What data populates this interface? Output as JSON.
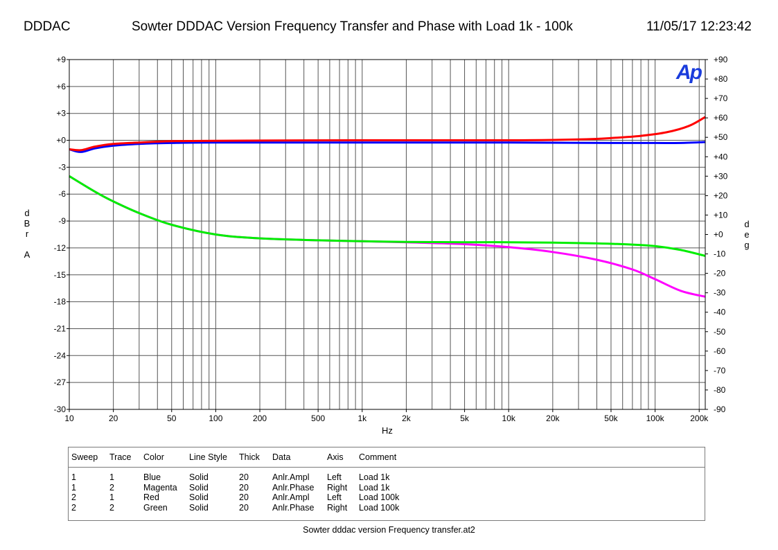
{
  "header": {
    "left": "DDDAC",
    "title": "Sowter DDDAC Version Frequency Transfer and Phase with Load 1k - 100k",
    "datetime": "11/05/17 12:23:42"
  },
  "logo": {
    "text": "Ap",
    "color": "#1a3cdc"
  },
  "chart_data": {
    "type": "line",
    "x_scale": "log",
    "xlim": [
      10,
      220000
    ],
    "xlabel": "Hz",
    "x_ticks": [
      10,
      20,
      50,
      100,
      200,
      500,
      1000,
      2000,
      5000,
      10000,
      20000,
      50000,
      100000,
      200000
    ],
    "x_tick_labels": [
      "10",
      "20",
      "50",
      "100",
      "200",
      "500",
      "1k",
      "2k",
      "5k",
      "10k",
      "20k",
      "50k",
      "100k",
      "200k"
    ],
    "left_axis": {
      "label": "dBr A",
      "ylim": [
        -30,
        9
      ],
      "ticks": [
        9,
        6,
        3,
        0,
        -3,
        -6,
        -9,
        -12,
        -15,
        -18,
        -21,
        -24,
        -27,
        -30
      ],
      "tick_labels": [
        "+9",
        "+6",
        "+3",
        "+0",
        "-3",
        "-6",
        "-9",
        "-12",
        "-15",
        "-18",
        "-21",
        "-24",
        "-27",
        "-30"
      ]
    },
    "right_axis": {
      "label": "deg",
      "ylim": [
        -90,
        90
      ],
      "ticks": [
        90,
        80,
        70,
        60,
        50,
        40,
        30,
        20,
        10,
        0,
        -10,
        -20,
        -30,
        -40,
        -50,
        -60,
        -70,
        -80,
        -90
      ],
      "tick_labels": [
        "+90",
        "+80",
        "+70",
        "+60",
        "+50",
        "+40",
        "+30",
        "+20",
        "+10",
        "+0",
        "-10",
        "-20",
        "-30",
        "-40",
        "-50",
        "-60",
        "-70",
        "-80",
        "-90"
      ]
    },
    "grid": true,
    "series": [
      {
        "color": "#0000ff",
        "axis": "left",
        "x": [
          10,
          12,
          15,
          20,
          30,
          50,
          100,
          1000,
          10000,
          50000,
          100000,
          150000,
          220000
        ],
        "y": [
          -1.0,
          -1.3,
          -0.9,
          -0.6,
          -0.4,
          -0.3,
          -0.25,
          -0.25,
          -0.25,
          -0.3,
          -0.3,
          -0.3,
          -0.2
        ]
      },
      {
        "color": "#ff00ff",
        "axis": "right",
        "x": [
          10,
          15,
          20,
          30,
          50,
          100,
          200,
          500,
          1000,
          2000,
          5000,
          10000,
          20000,
          40000,
          70000,
          100000,
          150000,
          220000
        ],
        "y": [
          30,
          22,
          17,
          11,
          5,
          0,
          -2,
          -3,
          -3.5,
          -4,
          -5,
          -6.5,
          -9,
          -13,
          -18,
          -23,
          -29,
          -32
        ]
      },
      {
        "color": "#ff0000",
        "axis": "left",
        "x": [
          10,
          12,
          15,
          20,
          30,
          50,
          100,
          1000,
          10000,
          30000,
          50000,
          80000,
          120000,
          170000,
          220000
        ],
        "y": [
          -1.0,
          -1.1,
          -0.7,
          -0.4,
          -0.25,
          -0.1,
          -0.05,
          0.0,
          0.0,
          0.1,
          0.25,
          0.5,
          0.9,
          1.6,
          2.6
        ]
      },
      {
        "color": "#00ee00",
        "axis": "right",
        "x": [
          10,
          15,
          20,
          30,
          50,
          100,
          200,
          500,
          1000,
          2000,
          5000,
          10000,
          20000,
          40000,
          70000,
          100000,
          150000,
          220000
        ],
        "y": [
          30,
          22,
          17,
          11,
          5,
          0,
          -2,
          -3,
          -3.5,
          -3.8,
          -4,
          -4,
          -4.2,
          -4.6,
          -5.2,
          -6,
          -8,
          -11
        ]
      }
    ]
  },
  "legend": {
    "headers": [
      "Sweep",
      "Trace",
      "Color",
      "Line Style",
      "Thick",
      "Data",
      "Axis",
      "Comment"
    ],
    "rows": [
      [
        "1",
        "1",
        "Blue",
        "Solid",
        "20",
        "Anlr.Ampl",
        "Left",
        "Load 1k"
      ],
      [
        "1",
        "2",
        "Magenta",
        "Solid",
        "20",
        "Anlr.Phase",
        "Right",
        "Load 1k"
      ],
      [
        "2",
        "1",
        "Red",
        "Solid",
        "20",
        "Anlr.Ampl",
        "Left",
        "Load 100k"
      ],
      [
        "2",
        "2",
        "Green",
        "Solid",
        "20",
        "Anlr.Phase",
        "Right",
        "Load 100k"
      ]
    ]
  },
  "footer": "Sowter dddac version Frequency transfer.at2"
}
